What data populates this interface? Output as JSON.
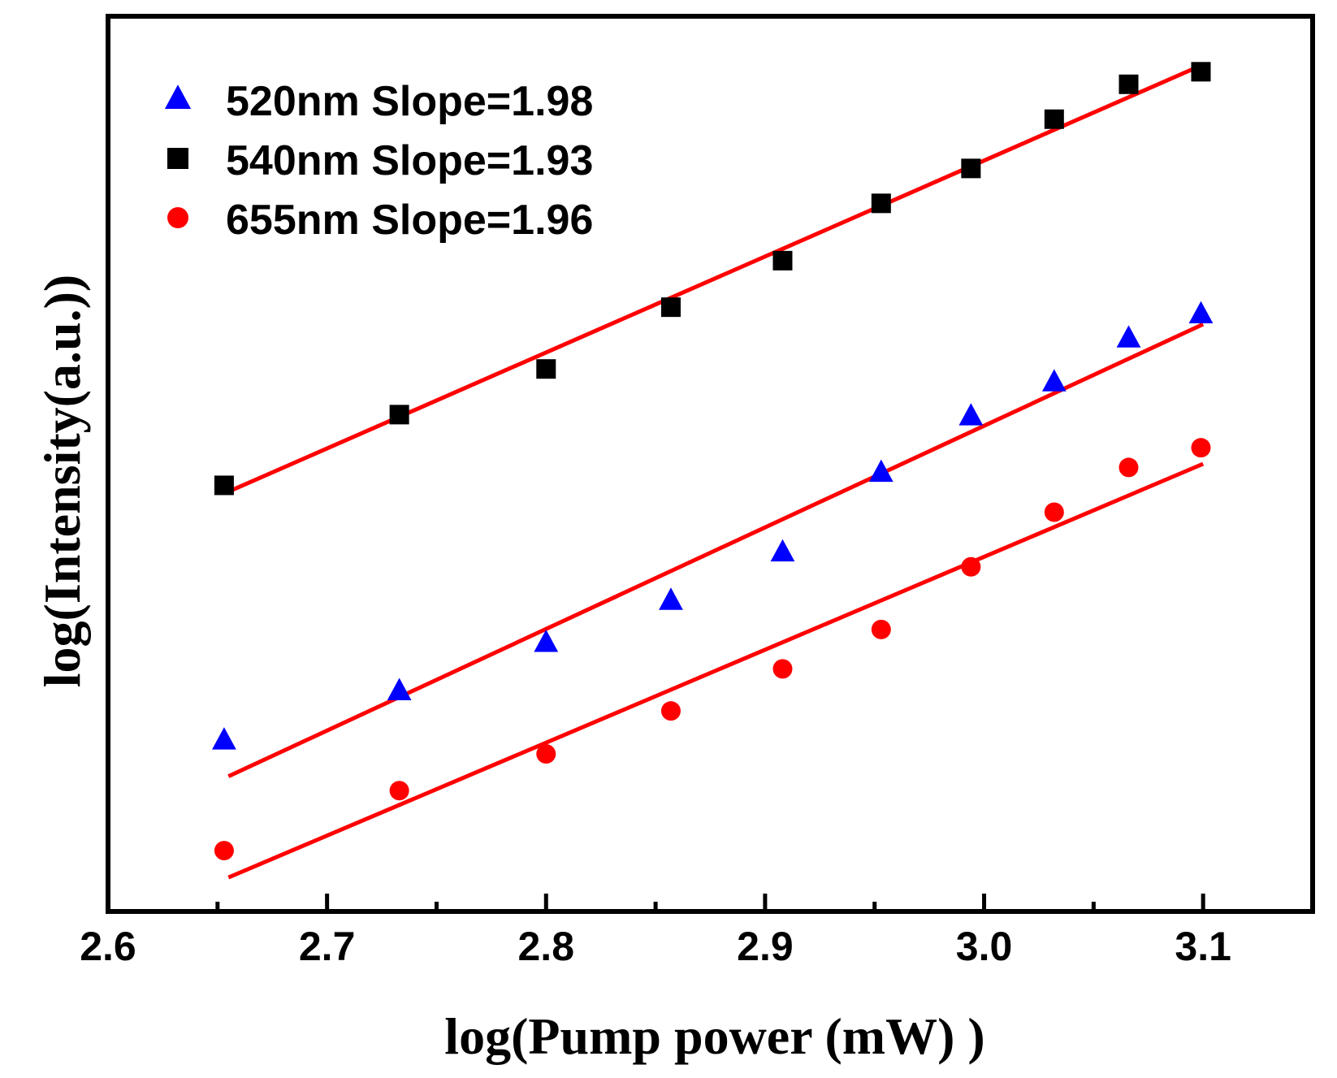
{
  "chart_data": {
    "type": "scatter",
    "title": "",
    "xlabel": "log(Pump power (mW) )",
    "ylabel": "log(Intensity(a.u.))",
    "xlim": [
      2.6,
      3.15
    ],
    "ylim": [
      0,
      100
    ],
    "xticks": [
      2.6,
      2.7,
      2.8,
      2.9,
      3.0,
      3.1
    ],
    "xtick_labels": [
      "2.6",
      "2.7",
      "2.8",
      "2.9",
      "3.0",
      "3.1"
    ],
    "minor_xticks": [
      2.65,
      2.75,
      2.85,
      2.95,
      3.05
    ],
    "y_tick_labels_shown": false,
    "legend_position": "top-left",
    "x": [
      2.653,
      2.733,
      2.8,
      2.857,
      2.908,
      2.953,
      2.994,
      3.032,
      3.066,
      3.099
    ],
    "series": [
      {
        "name": "520nm",
        "legend": "520nm Slope=1.98",
        "slope": 1.98,
        "marker": "triangle",
        "color": "#0000ff",
        "values": [
          19.1,
          24.6,
          30.0,
          34.7,
          40.1,
          49.0,
          55.3,
          59.1,
          64.0,
          66.7
        ],
        "fit": {
          "x": [
            2.655,
            3.1
          ],
          "y": [
            15.1,
            65.6
          ]
        }
      },
      {
        "name": "540nm",
        "legend": "540nm Slope=1.93",
        "slope": 1.93,
        "marker": "square",
        "color": "#000000",
        "values": [
          47.6,
          55.5,
          60.6,
          67.5,
          72.7,
          79.1,
          83.0,
          88.5,
          92.4,
          93.8
        ],
        "fit": {
          "x": [
            2.655,
            3.1
          ],
          "y": [
            46.9,
            94.6
          ]
        }
      },
      {
        "name": "655nm",
        "legend": "655nm Slope=1.96",
        "slope": 1.96,
        "marker": "circle",
        "color": "#ff0000",
        "values": [
          6.8,
          13.5,
          17.6,
          22.4,
          27.1,
          31.5,
          38.5,
          44.6,
          49.6,
          51.8
        ],
        "fit": {
          "x": [
            2.655,
            3.1
          ],
          "y": [
            3.8,
            50.0
          ]
        }
      }
    ],
    "fit_line_color": "#ff0000"
  }
}
